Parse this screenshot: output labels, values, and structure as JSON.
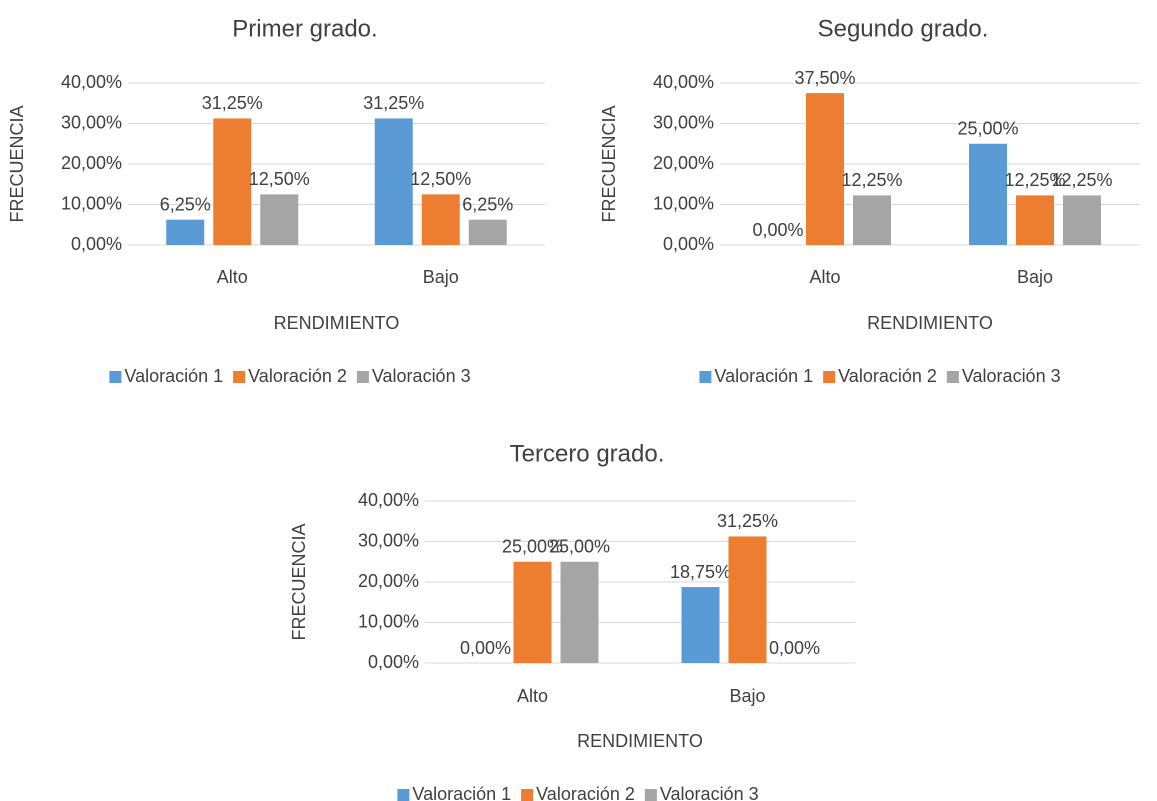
{
  "chart_data": [
    {
      "type": "bar",
      "title": "Primer grado.",
      "xlabel": "RENDIMIENTO",
      "ylabel": "FRECUENCIA",
      "categories": [
        "Alto",
        "Bajo"
      ],
      "series": [
        {
          "name": "Valoración 1",
          "color": "#5b9bd5",
          "values": [
            6.25,
            31.25
          ],
          "value_labels": [
            "6,25%",
            "31,25%"
          ]
        },
        {
          "name": "Valoración 2",
          "color": "#ed7d31",
          "values": [
            31.25,
            12.5
          ],
          "value_labels": [
            "31,25%",
            "12,50%"
          ]
        },
        {
          "name": "Valoración 3",
          "color": "#a5a5a5",
          "values": [
            12.5,
            6.25
          ],
          "value_labels": [
            "12,50%",
            "6,25%"
          ]
        }
      ],
      "ylim": [
        0,
        40
      ],
      "yticks": [
        {
          "value": 0,
          "label": "0,00%"
        },
        {
          "value": 10,
          "label": "10,00%"
        },
        {
          "value": 20,
          "label": "20,00%"
        },
        {
          "value": 30,
          "label": "30,00%"
        },
        {
          "value": 40,
          "label": "40,00%"
        }
      ],
      "grid": true,
      "legend": "bottom"
    },
    {
      "type": "bar",
      "title": "Segundo grado.",
      "xlabel": "RENDIMIENTO",
      "ylabel": "FRECUENCIA",
      "categories": [
        "Alto",
        "Bajo"
      ],
      "series": [
        {
          "name": "Valoración 1",
          "color": "#5b9bd5",
          "values": [
            0,
            25
          ],
          "value_labels": [
            "0,00%",
            "25,00%"
          ]
        },
        {
          "name": "Valoración 2",
          "color": "#ed7d31",
          "values": [
            37.5,
            12.25
          ],
          "value_labels": [
            "37,50%",
            "12,25%"
          ]
        },
        {
          "name": "Valoración 3",
          "color": "#a5a5a5",
          "values": [
            12.25,
            12.25
          ],
          "value_labels": [
            "12,25%",
            "12,25%"
          ]
        }
      ],
      "ylim": [
        0,
        40
      ],
      "yticks": [
        {
          "value": 0,
          "label": "0,00%"
        },
        {
          "value": 10,
          "label": "10,00%"
        },
        {
          "value": 20,
          "label": "20,00%"
        },
        {
          "value": 30,
          "label": "30,00%"
        },
        {
          "value": 40,
          "label": "40,00%"
        }
      ],
      "grid": true,
      "legend": "bottom"
    },
    {
      "type": "bar",
      "title": "Tercero grado.",
      "xlabel": "RENDIMIENTO",
      "ylabel": "FRECUENCIA",
      "categories": [
        "Alto",
        "Bajo"
      ],
      "series": [
        {
          "name": "Valoración 1",
          "color": "#5b9bd5",
          "values": [
            0,
            18.75
          ],
          "value_labels": [
            "0,00%",
            "18,75%"
          ]
        },
        {
          "name": "Valoración 2",
          "color": "#ed7d31",
          "values": [
            25,
            31.25
          ],
          "value_labels": [
            "25,00%",
            "31,25%"
          ]
        },
        {
          "name": "Valoración 3",
          "color": "#a5a5a5",
          "values": [
            25,
            0
          ],
          "value_labels": [
            "25,00%",
            "0,00%"
          ]
        }
      ],
      "ylim": [
        0,
        40
      ],
      "yticks": [
        {
          "value": 0,
          "label": "0,00%"
        },
        {
          "value": 10,
          "label": "10,00%"
        },
        {
          "value": 20,
          "label": "20,00%"
        },
        {
          "value": 30,
          "label": "30,00%"
        },
        {
          "value": 40,
          "label": "40,00%"
        }
      ],
      "grid": true,
      "legend": "bottom"
    }
  ]
}
